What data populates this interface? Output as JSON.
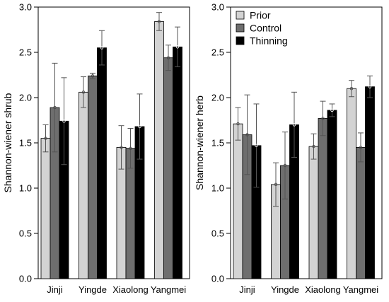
{
  "chart_data": [
    {
      "type": "bar",
      "categories": [
        "Jinji",
        "Yingde",
        "Xiaolong",
        "Yangmei"
      ],
      "series": [
        {
          "name": "Prior",
          "color": "#d3d3d3",
          "values": [
            1.55,
            2.06,
            1.45,
            2.84
          ],
          "err": [
            0.15,
            0.17,
            0.24,
            0.1
          ]
        },
        {
          "name": "Control",
          "color": "#6e6e6e",
          "values": [
            1.89,
            2.24,
            1.44,
            2.44
          ],
          "err": [
            0.49,
            0.03,
            0.22,
            0.14
          ]
        },
        {
          "name": "Thinning",
          "color": "#000000",
          "values": [
            1.74,
            2.55,
            1.68,
            2.56
          ],
          "err": [
            0.48,
            0.19,
            0.36,
            0.22
          ]
        }
      ],
      "ylabel": "Shannon-wiener shrub",
      "xlabel": "",
      "ylim": [
        0.0,
        3.0
      ],
      "yticks": [
        "0.0",
        "0.5",
        "1.0",
        "1.5",
        "2.0",
        "2.5",
        "3.0"
      ],
      "legend": false
    },
    {
      "type": "bar",
      "categories": [
        "Jinji",
        "Yingde",
        "Xiaolong",
        "Yangmei"
      ],
      "series": [
        {
          "name": "Prior",
          "color": "#d3d3d3",
          "values": [
            1.71,
            1.04,
            1.46,
            2.1
          ],
          "err": [
            0.18,
            0.24,
            0.14,
            0.09
          ]
        },
        {
          "name": "Control",
          "color": "#6e6e6e",
          "values": [
            1.59,
            1.25,
            1.77,
            1.45
          ],
          "err": [
            0.44,
            0.37,
            0.19,
            0.16
          ]
        },
        {
          "name": "Thinning",
          "color": "#000000",
          "values": [
            1.47,
            1.7,
            1.86,
            2.12
          ],
          "err": [
            0.46,
            0.36,
            0.07,
            0.12
          ]
        }
      ],
      "ylabel": "Shannon-wiener herb",
      "xlabel": "",
      "ylim": [
        0.0,
        3.0
      ],
      "yticks": [
        "0.0",
        "0.5",
        "1.0",
        "1.5",
        "2.0",
        "2.5",
        "3.0"
      ],
      "legend": true,
      "legend_position": "top-left"
    }
  ]
}
